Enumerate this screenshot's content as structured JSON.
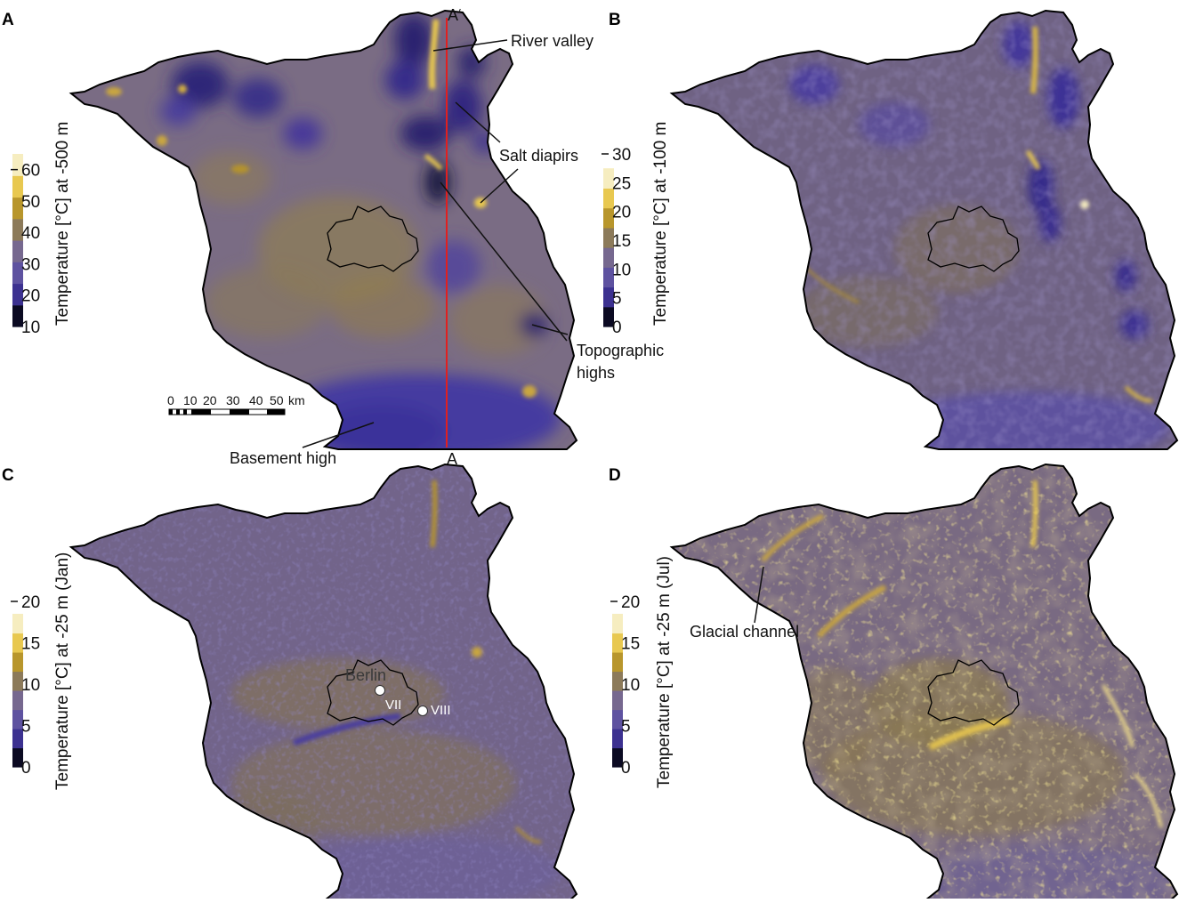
{
  "palette": {
    "cool_deep": "#3c3190",
    "cool": "#5e52a0",
    "mid": "#76688f",
    "warm": "#8c7a5a",
    "gold": "#b8962c",
    "hot": "#e8c850",
    "hottest": "#f6edc0",
    "darkest": "#0b0a22",
    "section_line": "#e02020"
  },
  "panels": [
    {
      "id": "A",
      "letter": "A",
      "colorbar": {
        "title": "Temperature [°C] at -500 m",
        "ticks": [
          "10",
          "20",
          "30",
          "40",
          "50",
          "60"
        ],
        "tick_values": [
          10,
          20,
          30,
          40,
          50,
          60
        ],
        "range": [
          10,
          65
        ],
        "top_dash_value": 60
      },
      "annotations": [
        {
          "key": "river",
          "text": "River valley"
        },
        {
          "key": "salt",
          "text": "Salt diapirs"
        },
        {
          "key": "topo1",
          "text": "Topographic"
        },
        {
          "key": "topo2",
          "text": "highs"
        },
        {
          "key": "basement",
          "text": "Basement high"
        }
      ],
      "section": {
        "start_label": "A",
        "end_label": "A‘"
      },
      "scale_bar": {
        "labels": [
          "0",
          "10",
          "20",
          "30",
          "40",
          "50"
        ],
        "unit": "km"
      }
    },
    {
      "id": "B",
      "letter": "B",
      "colorbar": {
        "title": "Temperature [°C] at -100 m",
        "ticks": [
          "0",
          "5",
          "10",
          "15",
          "20",
          "25",
          "30"
        ],
        "tick_values": [
          0,
          5,
          10,
          15,
          20,
          25,
          30
        ],
        "range": [
          0,
          27.5
        ],
        "top_dash_value": 30
      }
    },
    {
      "id": "C",
      "letter": "C",
      "colorbar": {
        "title": "Temperature [°C] at -25 m (Jan)",
        "ticks": [
          "0",
          "5",
          "10",
          "15",
          "20"
        ],
        "tick_values": [
          0,
          5,
          10,
          15,
          20
        ],
        "range": [
          0,
          18.5
        ],
        "top_dash_value": 20
      },
      "labels": [
        {
          "key": "berlin",
          "text": "Berlin"
        },
        {
          "key": "vii",
          "text": "VII"
        },
        {
          "key": "viii",
          "text": "VIII"
        }
      ]
    },
    {
      "id": "D",
      "letter": "D",
      "colorbar": {
        "title": "Temperature [°C] at -25 m (Jul)",
        "ticks": [
          "0",
          "5",
          "10",
          "15",
          "20"
        ],
        "tick_values": [
          0,
          5,
          10,
          15,
          20
        ],
        "range": [
          0,
          18.5
        ],
        "top_dash_value": 20
      },
      "annotations": [
        {
          "key": "glacial",
          "text": "Glacial channel"
        }
      ]
    }
  ]
}
